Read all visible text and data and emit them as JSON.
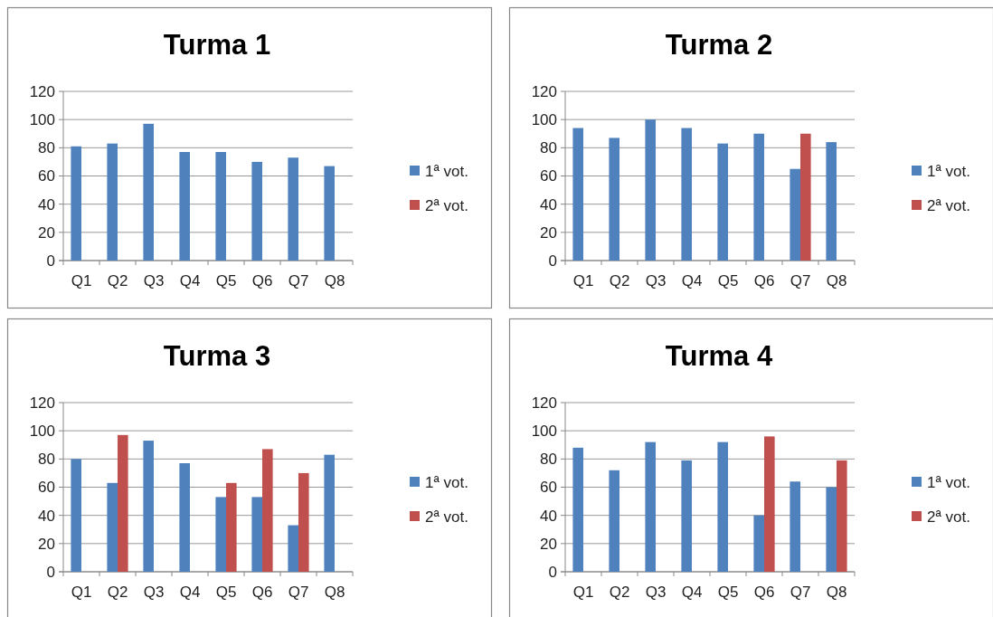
{
  "chart_data": [
    {
      "type": "bar",
      "title": "Turma 1",
      "categories": [
        "Q1",
        "Q2",
        "Q3",
        "Q4",
        "Q5",
        "Q6",
        "Q7",
        "Q8"
      ],
      "series": [
        {
          "name": "1ª vot.",
          "color": "#4f81bd",
          "values": [
            81,
            83,
            97,
            77,
            77,
            70,
            73,
            67
          ]
        },
        {
          "name": "2ª vot.",
          "color": "#c0504d",
          "values": [
            null,
            null,
            null,
            null,
            null,
            null,
            null,
            null
          ]
        }
      ],
      "ylim": [
        0,
        120
      ],
      "yticks": [
        0,
        20,
        40,
        60,
        80,
        100,
        120
      ],
      "grid": "y",
      "legend": "right"
    },
    {
      "type": "bar",
      "title": "Turma 2",
      "categories": [
        "Q1",
        "Q2",
        "Q3",
        "Q4",
        "Q5",
        "Q6",
        "Q7",
        "Q8"
      ],
      "series": [
        {
          "name": "1ª vot.",
          "color": "#4f81bd",
          "values": [
            94,
            87,
            100,
            94,
            83,
            90,
            65,
            84
          ]
        },
        {
          "name": "2ª vot.",
          "color": "#c0504d",
          "values": [
            null,
            null,
            null,
            null,
            null,
            null,
            90,
            null
          ]
        }
      ],
      "ylim": [
        0,
        120
      ],
      "yticks": [
        0,
        20,
        40,
        60,
        80,
        100,
        120
      ],
      "grid": "y",
      "legend": "right"
    },
    {
      "type": "bar",
      "title": "Turma 3",
      "categories": [
        "Q1",
        "Q2",
        "Q3",
        "Q4",
        "Q5",
        "Q6",
        "Q7",
        "Q8"
      ],
      "series": [
        {
          "name": "1ª vot.",
          "color": "#4f81bd",
          "values": [
            80,
            63,
            93,
            77,
            53,
            53,
            33,
            83
          ]
        },
        {
          "name": "2ª vot.",
          "color": "#c0504d",
          "values": [
            null,
            97,
            null,
            null,
            63,
            87,
            70,
            null
          ]
        }
      ],
      "ylim": [
        0,
        120
      ],
      "yticks": [
        0,
        20,
        40,
        60,
        80,
        100,
        120
      ],
      "grid": "y",
      "legend": "right"
    },
    {
      "type": "bar",
      "title": "Turma 4",
      "categories": [
        "Q1",
        "Q2",
        "Q3",
        "Q4",
        "Q5",
        "Q6",
        "Q7",
        "Q8"
      ],
      "series": [
        {
          "name": "1ª vot.",
          "color": "#4f81bd",
          "values": [
            88,
            72,
            92,
            79,
            92,
            40,
            64,
            60
          ]
        },
        {
          "name": "2ª vot.",
          "color": "#c0504d",
          "values": [
            null,
            null,
            null,
            null,
            null,
            96,
            null,
            79
          ]
        }
      ],
      "ylim": [
        0,
        120
      ],
      "yticks": [
        0,
        20,
        40,
        60,
        80,
        100,
        120
      ],
      "grid": "y",
      "legend": "right"
    }
  ]
}
